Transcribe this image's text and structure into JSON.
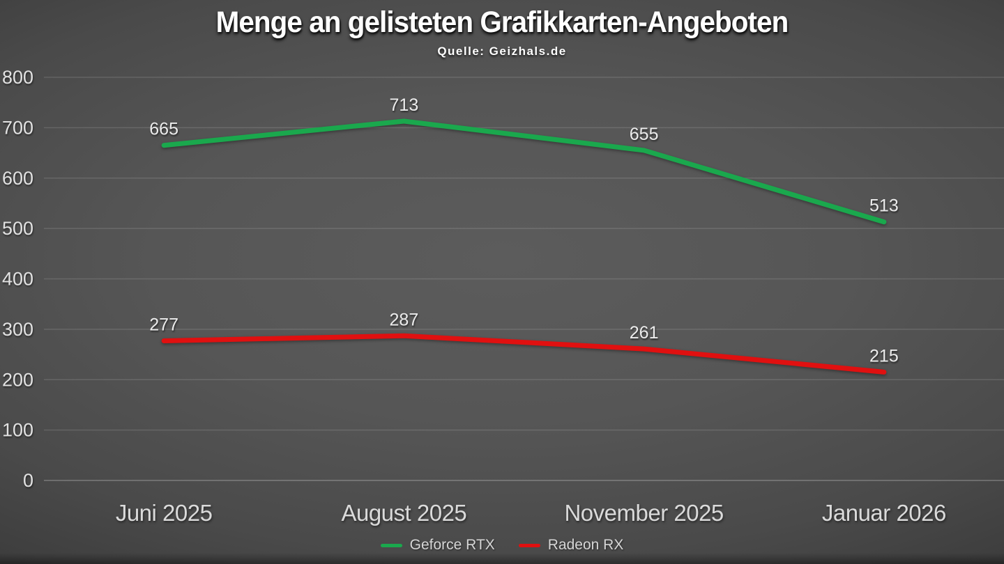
{
  "title": "Menge an gelisteten Grafikkarten-Angeboten",
  "subtitle": "Quelle: Geizhals.de",
  "colors": {
    "background_center": "#5c5c5c",
    "background_edge": "#242424",
    "title_text": "#ffffff",
    "axis_text": "#dadada",
    "data_label_text": "#ececec",
    "gridline": "rgba(255,255,255,0.13)",
    "geforce_green": "#1aa84d",
    "radeon_red": "#e01010"
  },
  "chart_data": {
    "type": "line",
    "title": "Menge an gelisteten Grafikkarten-Angeboten",
    "subtitle": "Quelle: Geizhals.de",
    "categories": [
      "Juni 2025",
      "August 2025",
      "November 2025",
      "Januar 2026"
    ],
    "series": [
      {
        "name": "Geforce RTX",
        "color": "#1aa84d",
        "values": [
          665,
          713,
          655,
          513
        ]
      },
      {
        "name": "Radeon RX",
        "color": "#e01010",
        "values": [
          277,
          287,
          261,
          215
        ]
      }
    ],
    "ylim": [
      0,
      800
    ],
    "ytick_step": 100,
    "yticks": [
      0,
      100,
      200,
      300,
      400,
      500,
      600,
      700,
      800
    ],
    "grid": true,
    "data_labels": true,
    "legend_position": "bottom"
  }
}
